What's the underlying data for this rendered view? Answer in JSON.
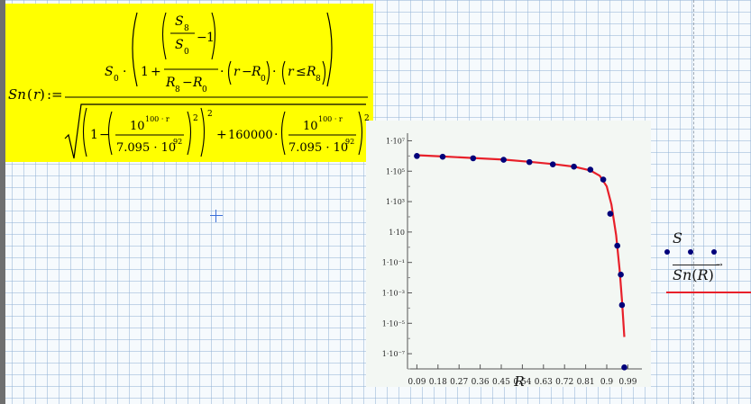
{
  "formula": {
    "lhs_fn": "Sn",
    "lhs_arg": "r",
    "assign": ":=",
    "S": "S",
    "R": "R",
    "r": "r",
    "sub_8": "8",
    "sub_0": "0",
    "one": "1",
    "plus": "+",
    "minus": "−",
    "dot": "·",
    "leq": "≤",
    "ten_pow_base": "10",
    "ten_pow_exp": "100 · r",
    "denom_const": "7.095 · 10",
    "denom_exp": "92",
    "square": "2",
    "coef": "160000"
  },
  "plot": {
    "x_axis_var": "R",
    "legend_trace1": "S",
    "legend_trace2_fn": "Sn",
    "legend_trace2_arg": "R",
    "trace1_color": "#00007a",
    "trace2_color": "#e8202a"
  },
  "chart_data": {
    "type": "scatter",
    "title": "",
    "xlabel": "R",
    "ylabel": "",
    "y_scale": "log",
    "xlim": [
      0.05,
      1.05
    ],
    "ylim_log10": [
      -8,
      7.5
    ],
    "x_ticks": [
      "0.09",
      "0.18",
      "0.27",
      "0.36",
      "0.45",
      "0.54",
      "0.63",
      "0.72",
      "0.81",
      "0.9",
      "0.99"
    ],
    "y_ticks": [
      "1·10⁻⁷",
      "1·10⁻⁵",
      "1·10⁻³",
      "1·10⁻¹",
      "1·10",
      "1·10³",
      "1·10⁵",
      "1·10⁷"
    ],
    "series": [
      {
        "name": "S",
        "style": "points",
        "x": [
          0.09,
          0.2,
          0.33,
          0.46,
          0.57,
          0.67,
          0.76,
          0.83,
          0.885,
          0.915,
          0.945,
          0.96,
          0.965,
          0.975
        ],
        "y_log10": [
          6.0,
          5.95,
          5.85,
          5.75,
          5.6,
          5.45,
          5.3,
          5.1,
          4.45,
          2.2,
          0.1,
          -1.8,
          -3.8,
          -7.9
        ]
      },
      {
        "name": "Sn(R)",
        "style": "line",
        "x": [
          0.09,
          0.2,
          0.33,
          0.46,
          0.57,
          0.67,
          0.76,
          0.83,
          0.87,
          0.9,
          0.92,
          0.94,
          0.955,
          0.965,
          0.975
        ],
        "y_log10": [
          6.05,
          5.97,
          5.87,
          5.76,
          5.62,
          5.47,
          5.3,
          5.05,
          4.7,
          4.0,
          2.8,
          0.8,
          -1.5,
          -3.5,
          -5.9
        ]
      }
    ]
  }
}
